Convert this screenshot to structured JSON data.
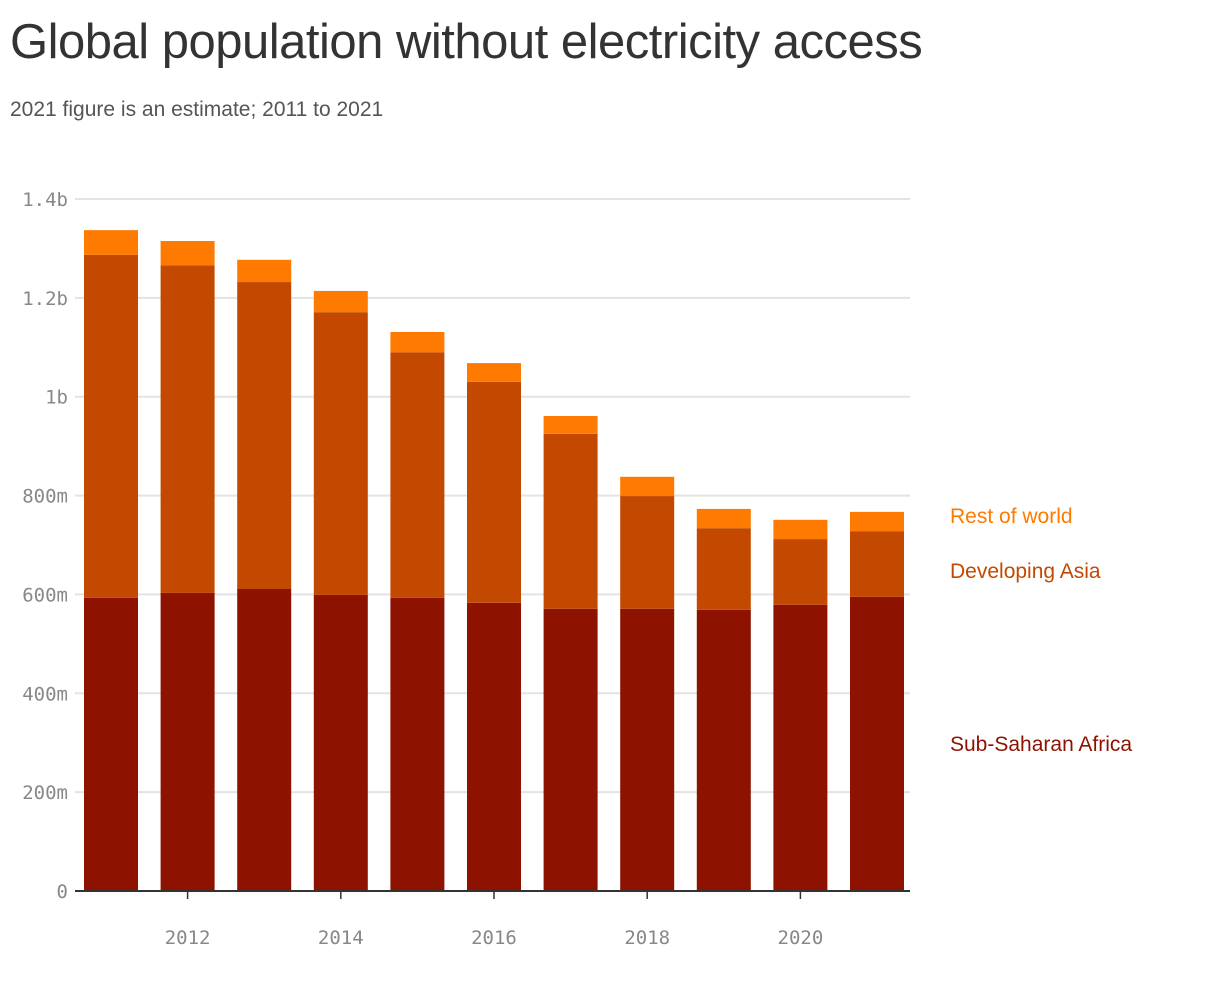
{
  "title": "Global population without electricity access",
  "subtitle": "2021 figure is an estimate; 2011 to 2021",
  "chart_data": {
    "type": "bar",
    "stacked": true,
    "title": "Global population without electricity access",
    "subtitle": "2021 figure is an estimate; 2011 to 2021",
    "unit": "millions of people",
    "categories": [
      2011,
      2012,
      2013,
      2014,
      2015,
      2016,
      2017,
      2018,
      2019,
      2020,
      2021
    ],
    "series": [
      {
        "name": "Sub-Saharan Africa",
        "color": "#8e1200",
        "values": [
          593,
          603,
          611,
          599,
          593,
          583,
          571,
          571,
          569,
          579,
          595
        ]
      },
      {
        "name": "Developing Asia",
        "color": "#c44900",
        "values": [
          694,
          663,
          621,
          572,
          497,
          447,
          354,
          228,
          165,
          133,
          133
        ]
      },
      {
        "name": "Rest of world",
        "color": "#ff7a00",
        "values": [
          50,
          49,
          45,
          43,
          41,
          38,
          36,
          39,
          39,
          39,
          39
        ]
      }
    ],
    "ylim": [
      0,
      1400
    ],
    "yticks": [
      {
        "v": 0,
        "label": "0"
      },
      {
        "v": 200,
        "label": "200m"
      },
      {
        "v": 400,
        "label": "400m"
      },
      {
        "v": 600,
        "label": "600m"
      },
      {
        "v": 800,
        "label": "800m"
      },
      {
        "v": 1000,
        "label": "1b"
      },
      {
        "v": 1200,
        "label": "1.2b"
      },
      {
        "v": 1400,
        "label": "1.4b"
      }
    ],
    "xticks": [
      2012,
      2014,
      2016,
      2018,
      2020
    ],
    "grid": true,
    "legend_placement": "right, inline labels"
  }
}
